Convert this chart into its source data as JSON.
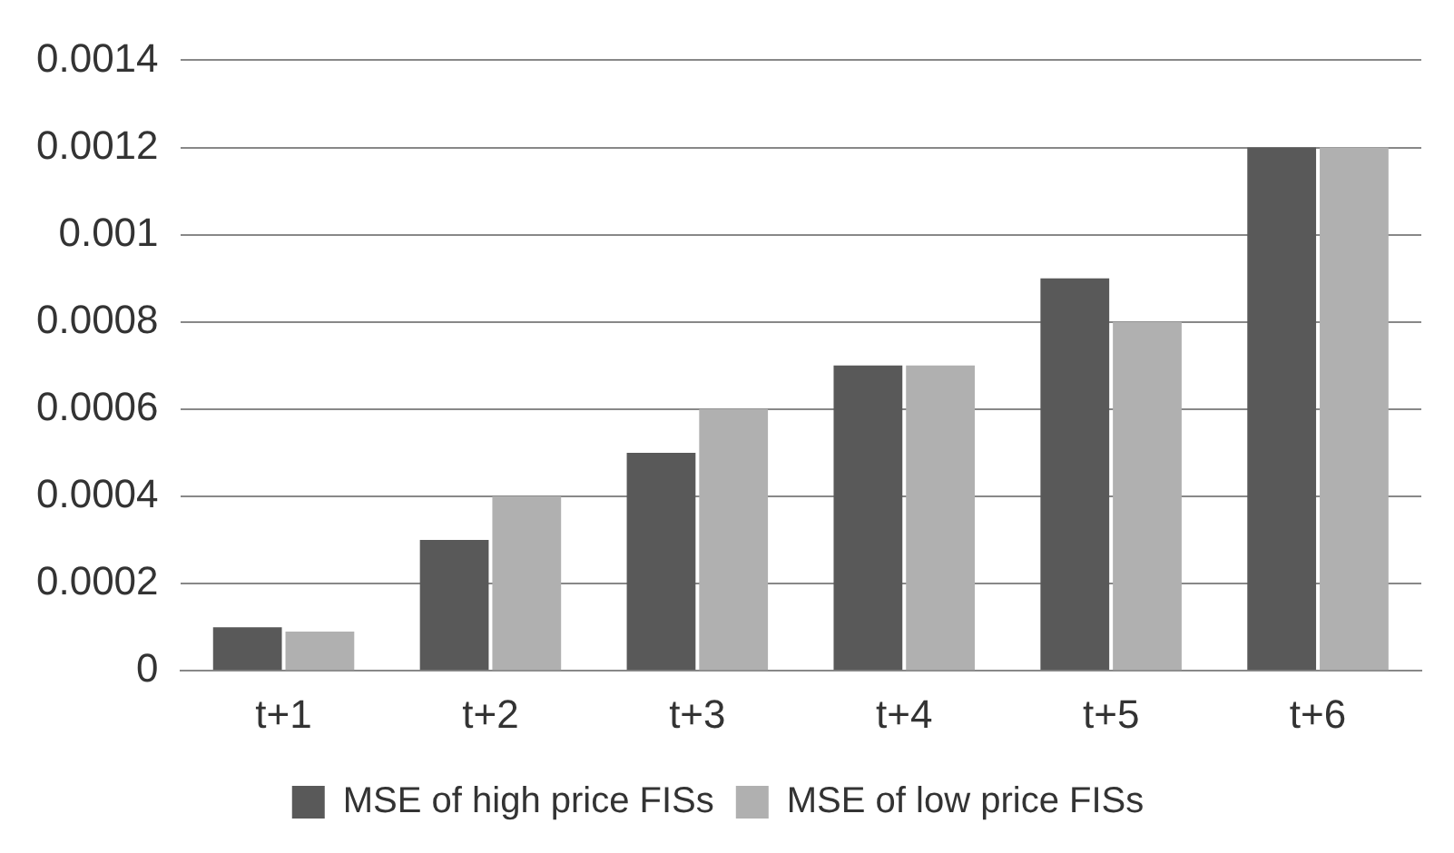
{
  "chart_data": {
    "type": "bar",
    "categories": [
      "t+1",
      "t+2",
      "t+3",
      "t+4",
      "t+5",
      "t+6"
    ],
    "series": [
      {
        "name": "MSE of high price FISs",
        "color": "#595959",
        "values": [
          0.0001,
          0.0003,
          0.0005,
          0.0007,
          0.0009,
          0.0012
        ]
      },
      {
        "name": "MSE of low price FISs",
        "color": "#b0b0b0",
        "values": [
          9e-05,
          0.0004,
          0.0006,
          0.0007,
          0.0008,
          0.0012
        ]
      }
    ],
    "ylim": [
      0,
      0.0014
    ],
    "yticks": [
      0,
      0.0002,
      0.0004,
      0.0006,
      0.0008,
      0.001,
      0.0012,
      0.0014
    ],
    "grid": "y",
    "legend": "bottom"
  }
}
